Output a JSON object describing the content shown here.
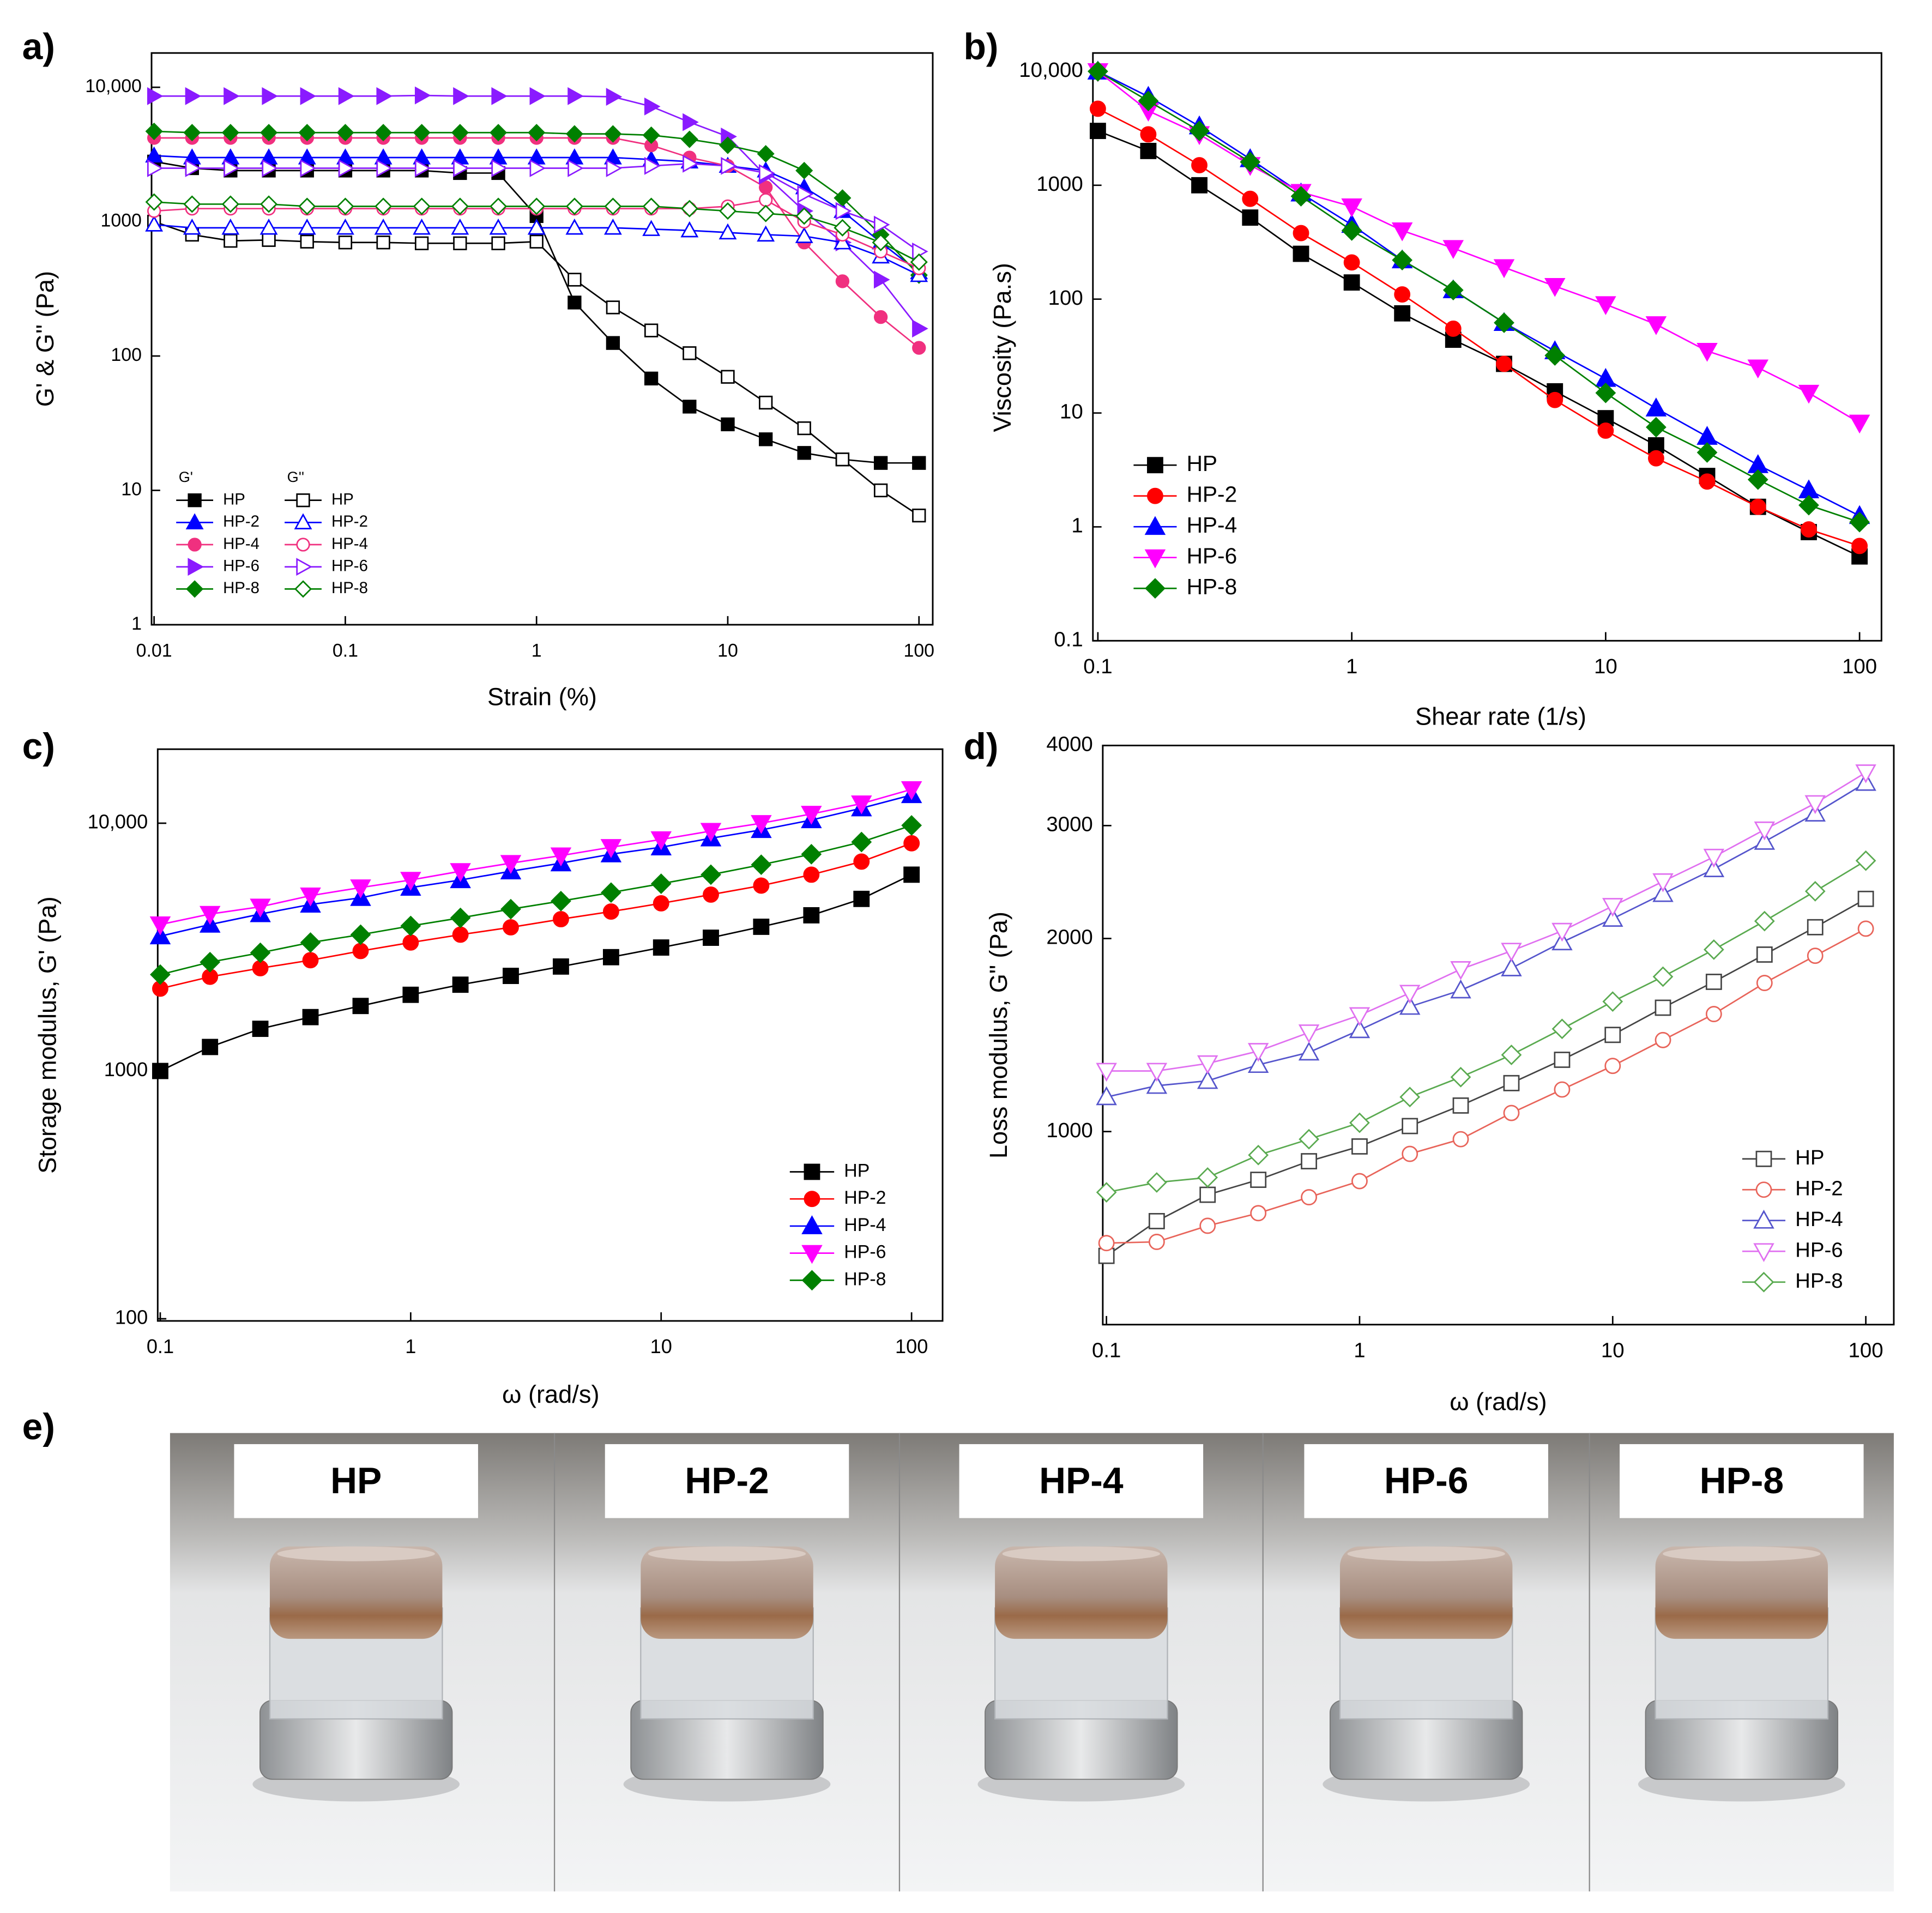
{
  "chart_data": [
    {
      "type": "line",
      "panel_label": "a)",
      "xlabel": "Strain (%)",
      "ylabel": "G' & G'' (Pa)",
      "xscale": "log",
      "yscale": "log",
      "xlim": [
        0.0097,
        118
      ],
      "ylim": [
        1,
        18000
      ],
      "xticks": [
        0.01,
        0.1,
        1,
        10,
        100
      ],
      "yticks": [
        1,
        10,
        100,
        1000,
        {
          "value": 10000,
          "label": "10,000"
        }
      ],
      "legend": "lower left",
      "grid": false,
      "x": [
        0.01,
        0.0158,
        0.0251,
        0.0398,
        0.0631,
        0.1,
        0.158,
        0.251,
        0.398,
        0.631,
        1,
        1.58,
        2.51,
        3.98,
        6.31,
        10,
        15.8,
        25.1,
        39.8,
        63.1,
        100
      ],
      "series_groups": [
        {
          "title": "G'",
          "series": [
            {
              "name": "HP",
              "color": "#000000",
              "marker": "square",
              "filled": true,
              "values": [
                2800,
                2500,
                2400,
                2400,
                2400,
                2400,
                2400,
                2400,
                2300,
                2300,
                1100,
                250,
                125,
                68,
                42,
                31,
                24,
                19,
                17,
                16,
                16
              ]
            },
            {
              "name": "HP-2",
              "color": "#0000ff",
              "marker": "triangle-up",
              "filled": true,
              "values": [
                3100,
                3000,
                3000,
                3000,
                3000,
                3000,
                3000,
                3000,
                3000,
                3000,
                3000,
                3000,
                3000,
                2900,
                2800,
                2600,
                2400,
                1800,
                1200,
                700,
                420
              ]
            },
            {
              "name": "HP-4",
              "color": "#f0307f",
              "marker": "circle",
              "filled": true,
              "values": [
                4200,
                4200,
                4200,
                4200,
                4200,
                4200,
                4200,
                4200,
                4200,
                4200,
                4200,
                4200,
                4200,
                3700,
                3000,
                2600,
                1800,
                700,
                360,
                195,
                115
              ]
            },
            {
              "name": "HP-6",
              "color": "#8a1aff",
              "marker": "triangle-right",
              "filled": true,
              "values": [
                8600,
                8600,
                8600,
                8600,
                8600,
                8600,
                8600,
                8700,
                8600,
                8600,
                8600,
                8600,
                8500,
                7200,
                5500,
                4300,
                2200,
                1200,
                700,
                370,
                160
              ]
            },
            {
              "name": "HP-8",
              "color": "#008000",
              "marker": "diamond",
              "filled": true,
              "values": [
                4700,
                4600,
                4600,
                4600,
                4600,
                4600,
                4600,
                4600,
                4600,
                4600,
                4600,
                4500,
                4500,
                4400,
                4100,
                3700,
                3200,
                2400,
                1500,
                800,
                400
              ]
            }
          ]
        },
        {
          "title": "G''",
          "series": [
            {
              "name": "HP",
              "color": "#000000",
              "marker": "square",
              "filled": false,
              "values": [
                1000,
                800,
                720,
                730,
                710,
                700,
                700,
                690,
                690,
                690,
                710,
                370,
                230,
                155,
                105,
                70,
                45,
                29,
                17,
                10,
                6.5
              ]
            },
            {
              "name": "HP-2",
              "color": "#0000ff",
              "marker": "triangle-up",
              "filled": false,
              "values": [
                950,
                900,
                900,
                900,
                900,
                900,
                900,
                900,
                900,
                900,
                900,
                900,
                900,
                880,
                860,
                830,
                800,
                780,
                700,
                550,
                400
              ]
            },
            {
              "name": "HP-4",
              "color": "#f0307f",
              "marker": "circle",
              "filled": false,
              "values": [
                1200,
                1250,
                1250,
                1250,
                1250,
                1250,
                1250,
                1250,
                1250,
                1250,
                1250,
                1250,
                1250,
                1250,
                1250,
                1300,
                1450,
                1000,
                800,
                600,
                450
              ]
            },
            {
              "name": "HP-6",
              "color": "#8a1aff",
              "marker": "triangle-right",
              "filled": false,
              "values": [
                2500,
                2500,
                2500,
                2500,
                2500,
                2500,
                2500,
                2500,
                2500,
                2500,
                2500,
                2500,
                2500,
                2600,
                2700,
                2600,
                2300,
                1600,
                1200,
                950,
                600
              ]
            },
            {
              "name": "HP-8",
              "color": "#008000",
              "marker": "diamond",
              "filled": false,
              "values": [
                1400,
                1350,
                1350,
                1350,
                1300,
                1300,
                1300,
                1300,
                1300,
                1300,
                1300,
                1300,
                1300,
                1300,
                1250,
                1200,
                1150,
                1100,
                900,
                700,
                500
              ]
            }
          ]
        }
      ]
    },
    {
      "type": "line",
      "panel_label": "b)",
      "xlabel": "Shear rate (1/s)",
      "ylabel": "Viscosity (Pa.s)",
      "xscale": "log",
      "yscale": "log",
      "xlim": [
        0.0956,
        122
      ],
      "ylim": [
        0.1,
        14500
      ],
      "xticks": [
        0.1,
        1,
        10,
        100
      ],
      "yticks": [
        0.1,
        1,
        10,
        100,
        1000,
        {
          "value": 10000,
          "label": "10,000"
        }
      ],
      "legend": "center left",
      "grid": false,
      "x": [
        0.1,
        0.158,
        0.251,
        0.398,
        0.631,
        1,
        1.58,
        2.51,
        3.98,
        6.31,
        10,
        15.8,
        25.1,
        39.8,
        63.1,
        100
      ],
      "series": [
        {
          "name": "HP",
          "color": "#000000",
          "marker": "square",
          "filled": true,
          "values": [
            3000,
            2000,
            1000,
            520,
            250,
            140,
            75,
            44,
            27,
            15.5,
            9,
            5.2,
            2.8,
            1.5,
            0.9,
            0.55
          ]
        },
        {
          "name": "HP-2",
          "color": "#ff0000",
          "marker": "circle",
          "filled": true,
          "values": [
            4700,
            2800,
            1500,
            760,
            380,
            210,
            110,
            55,
            27,
            13,
            7,
            4,
            2.5,
            1.5,
            0.95,
            0.68
          ]
        },
        {
          "name": "HP-4",
          "color": "#0000ff",
          "marker": "triangle-up",
          "filled": true,
          "values": [
            10000,
            6000,
            3300,
            1700,
            850,
            450,
            220,
            120,
            62,
            35,
            20,
            11,
            6.2,
            3.5,
            2.1,
            1.25
          ]
        },
        {
          "name": "HP-6",
          "color": "#ff00ff",
          "marker": "triangle-down",
          "filled": true,
          "values": [
            10000,
            4500,
            2800,
            1500,
            870,
            650,
            400,
            280,
            190,
            130,
            90,
            60,
            35,
            25,
            15,
            8.2
          ]
        },
        {
          "name": "HP-8",
          "color": "#008000",
          "marker": "diamond",
          "filled": true,
          "values": [
            10000,
            5500,
            3000,
            1600,
            800,
            400,
            220,
            120,
            62,
            32,
            15,
            7.5,
            4.5,
            2.6,
            1.55,
            1.1
          ]
        }
      ]
    },
    {
      "type": "line",
      "panel_label": "c)",
      "xlabel": "ω (rad/s)",
      "ylabel": "Storage modulus, G' (Pa)",
      "xscale": "log",
      "yscale": "log",
      "xlim": [
        0.0977,
        133
      ],
      "ylim": [
        98,
        19900
      ],
      "xticks": [
        0.1,
        1,
        10,
        100
      ],
      "yticks": [
        100,
        1000,
        {
          "value": 10000,
          "label": "10,000"
        }
      ],
      "legend": "lower right",
      "grid": false,
      "x": [
        0.1,
        0.158,
        0.251,
        0.398,
        0.631,
        1,
        1.58,
        2.51,
        3.98,
        6.31,
        10,
        15.8,
        25.1,
        39.8,
        63.1,
        100
      ],
      "series": [
        {
          "name": "HP",
          "color": "#000000",
          "marker": "square",
          "filled": true,
          "values": [
            1000,
            1250,
            1480,
            1650,
            1830,
            2030,
            2230,
            2420,
            2640,
            2880,
            3150,
            3450,
            3820,
            4250,
            4950,
            6200
          ]
        },
        {
          "name": "HP-2",
          "color": "#ff0000",
          "marker": "circle",
          "filled": true,
          "values": [
            2150,
            2400,
            2600,
            2800,
            3050,
            3300,
            3550,
            3800,
            4100,
            4400,
            4750,
            5150,
            5600,
            6200,
            7000,
            8300
          ]
        },
        {
          "name": "HP-4",
          "color": "#0000ff",
          "marker": "triangle-up",
          "filled": true,
          "values": [
            3500,
            3900,
            4300,
            4700,
            5000,
            5500,
            5900,
            6400,
            6900,
            7500,
            8000,
            8700,
            9400,
            10300,
            11500,
            13000
          ]
        },
        {
          "name": "HP-6",
          "color": "#ff00ff",
          "marker": "triangle-down",
          "filled": true,
          "values": [
            3900,
            4300,
            4600,
            5100,
            5500,
            5900,
            6400,
            6900,
            7400,
            8000,
            8600,
            9300,
            10000,
            10900,
            12000,
            13700
          ]
        },
        {
          "name": "HP-8",
          "color": "#008000",
          "marker": "diamond",
          "filled": true,
          "values": [
            2450,
            2750,
            3000,
            3300,
            3550,
            3850,
            4150,
            4500,
            4850,
            5250,
            5700,
            6200,
            6800,
            7500,
            8400,
            9800
          ]
        }
      ]
    },
    {
      "type": "line",
      "panel_label": "d)",
      "xlabel": "ω (rad/s)",
      "ylabel": "Loss modulus, G\" (Pa)",
      "xscale": "log",
      "yscale": "log",
      "xlim": [
        0.0967,
        129
      ],
      "ylim": [
        500,
        4000
      ],
      "xticks": [
        0.1,
        1,
        10,
        100
      ],
      "yticks": [
        1000,
        2000,
        3000,
        4000
      ],
      "legend": "lower right",
      "grid": false,
      "x": [
        0.1,
        0.158,
        0.251,
        0.398,
        0.631,
        1,
        1.58,
        2.51,
        3.98,
        6.31,
        10,
        15.8,
        25.1,
        39.8,
        63.1,
        100
      ],
      "series": [
        {
          "name": "HP",
          "color": "#444444",
          "marker": "square",
          "filled": false,
          "values": [
            640,
            725,
            797,
            841,
            899,
            948,
            1020,
            1098,
            1190,
            1294,
            1415,
            1560,
            1712,
            1888,
            2083,
            2306
          ]
        },
        {
          "name": "HP-2",
          "color": "#e8645a",
          "marker": "circle",
          "filled": false,
          "values": [
            670,
            673,
            713,
            746,
            790,
            837,
            923,
            973,
            1069,
            1163,
            1266,
            1389,
            1525,
            1705,
            1880,
            2072
          ]
        },
        {
          "name": "HP-4",
          "color": "#5555cc",
          "marker": "triangle-up",
          "filled": false,
          "values": [
            1132,
            1179,
            1200,
            1271,
            1329,
            1440,
            1566,
            1661,
            1798,
            1974,
            2148,
            2348,
            2567,
            2832,
            3134,
            3500
          ]
        },
        {
          "name": "HP-6",
          "color": "#e070f0",
          "marker": "triangle-down",
          "filled": false,
          "values": [
            1243,
            1243,
            1277,
            1335,
            1427,
            1518,
            1645,
            1791,
            1913,
            2055,
            2247,
            2455,
            2681,
            2957,
            3250,
            3630
          ]
        },
        {
          "name": "HP-8",
          "color": "#5aaa50",
          "marker": "diamond",
          "filled": false,
          "values": [
            804,
            833,
            848,
            919,
            973,
            1032,
            1132,
            1216,
            1317,
            1446,
            1595,
            1744,
            1922,
            2129,
            2370,
            2645
          ]
        }
      ]
    }
  ],
  "photo": {
    "panel_label": "e)",
    "labels": [
      "HP",
      "HP-2",
      "HP-4",
      "HP-6",
      "HP-8"
    ]
  }
}
